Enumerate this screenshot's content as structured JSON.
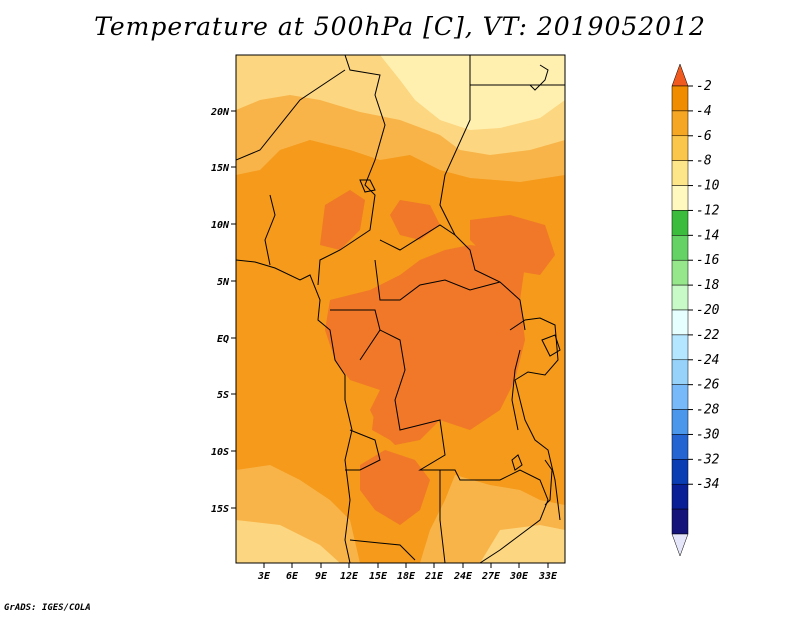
{
  "title": "Temperature at 500hPa [C], VT: 2019052012",
  "credit": "GrADS: IGES/COLA",
  "map": {
    "lat_labels": [
      "20N",
      "15N",
      "10N",
      "5N",
      "EQ",
      "5S",
      "10S",
      "15S"
    ],
    "lon_labels": [
      "3E",
      "6E",
      "9E",
      "12E",
      "15E",
      "18E",
      "21E",
      "24E",
      "27E",
      "30E",
      "33E"
    ],
    "variable": "Temperature at 500hPa",
    "units": "C"
  },
  "colorbar": {
    "labels": [
      "-2",
      "-4",
      "-6",
      "-8",
      "-10",
      "-12",
      "-14",
      "-16",
      "-18",
      "-20",
      "-22",
      "-24",
      "-26",
      "-28",
      "-30",
      "-32",
      "-34"
    ],
    "colors": [
      "#f05a1e",
      "#f08c00",
      "#f5a623",
      "#fbc64c",
      "#fde68a",
      "#fff9c0",
      "#3cbc3c",
      "#64d264",
      "#96e68c",
      "#c8fac8",
      "#e6ffff",
      "#b4e6ff",
      "#96d2fa",
      "#78b9fa",
      "#4b97eb",
      "#2364d2",
      "#0a3cb4",
      "#0a1e96",
      "#14147a",
      "#e6e6fa"
    ]
  },
  "colors": {
    "warm_core": "#f07828",
    "mid": "#f59a1a",
    "outer": "#f8b448",
    "light": "#fcd680",
    "lightest": "#fff0b0"
  }
}
